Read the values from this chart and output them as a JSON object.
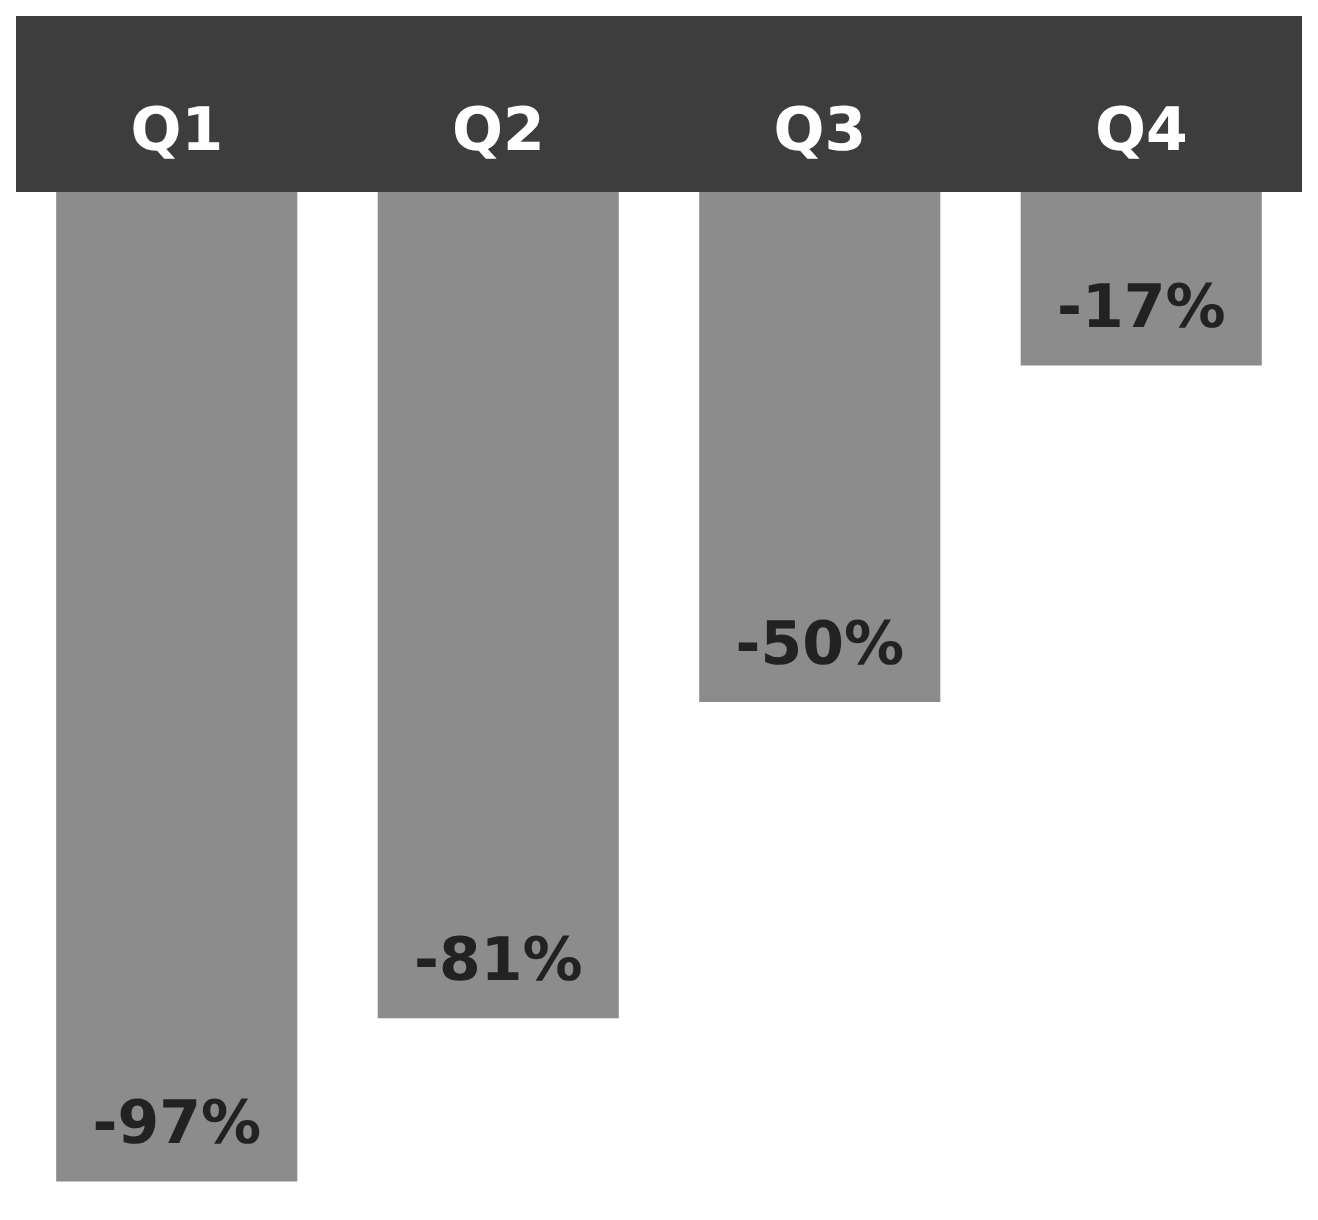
{
  "chart_data": {
    "type": "bar",
    "categories": [
      "Q1",
      "Q2",
      "Q3",
      "Q4"
    ],
    "values": [
      -97,
      -81,
      -50,
      -17
    ],
    "value_labels": [
      "-97%",
      "-81%",
      "-50%",
      "-17%"
    ],
    "color": "#8c8c8c",
    "grid": false,
    "legend": false
  }
}
